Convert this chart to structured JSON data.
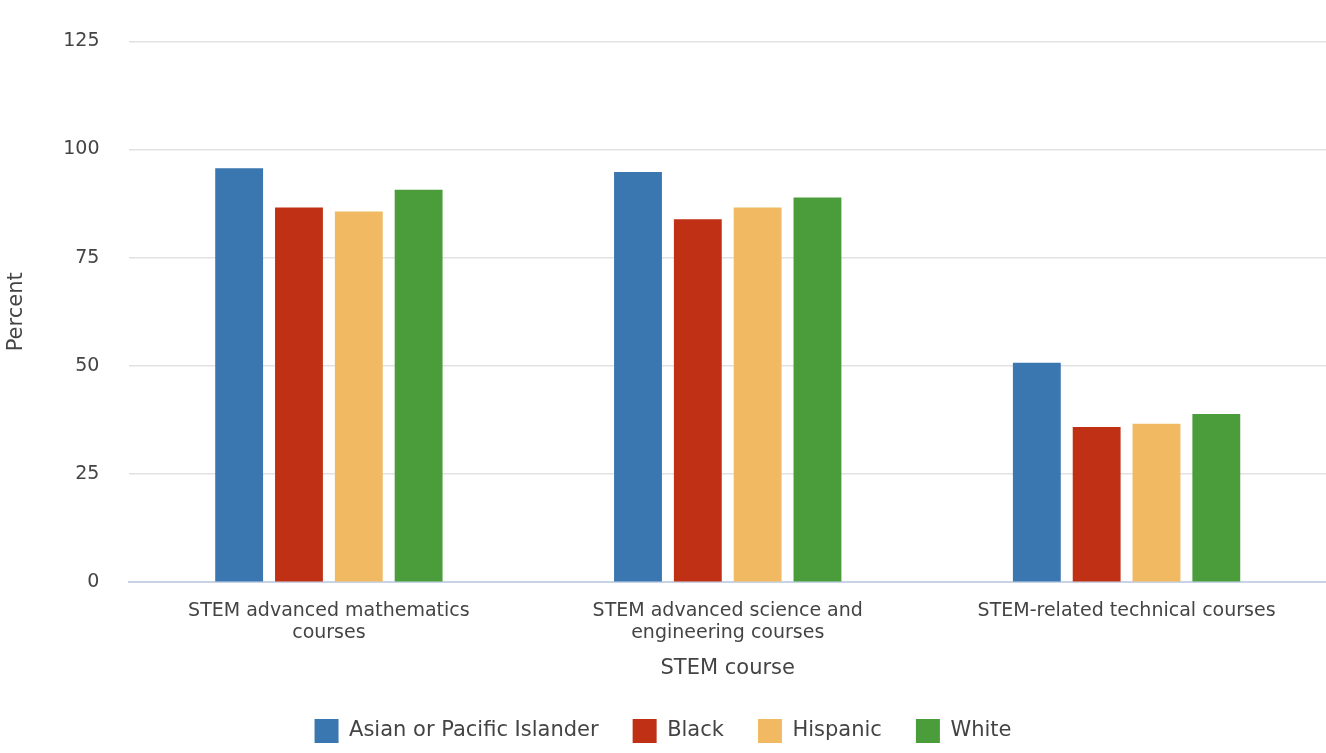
{
  "chart_data": {
    "type": "bar",
    "xlabel": "STEM course",
    "ylabel": "Percent",
    "categories": [
      "STEM advanced mathematics courses",
      "STEM advanced science and engineering courses",
      "STEM-related technical courses"
    ],
    "series": [
      {
        "name": "Asian or Pacific Islander",
        "color": "#3a76af",
        "values": [
          95.7,
          94.8,
          50.7
        ]
      },
      {
        "name": "Black",
        "color": "#bf3014",
        "values": [
          86.6,
          83.9,
          35.9
        ]
      },
      {
        "name": "Hispanic",
        "color": "#f0b962",
        "values": [
          85.7,
          86.6,
          36.6
        ]
      },
      {
        "name": "White",
        "color": "#4a9d3a",
        "values": [
          90.7,
          88.9,
          38.9
        ]
      }
    ],
    "ylim": [
      0,
      125
    ],
    "yticks": [
      0,
      25,
      50,
      75,
      100,
      125
    ],
    "grid": "y",
    "legend": "bottom"
  }
}
